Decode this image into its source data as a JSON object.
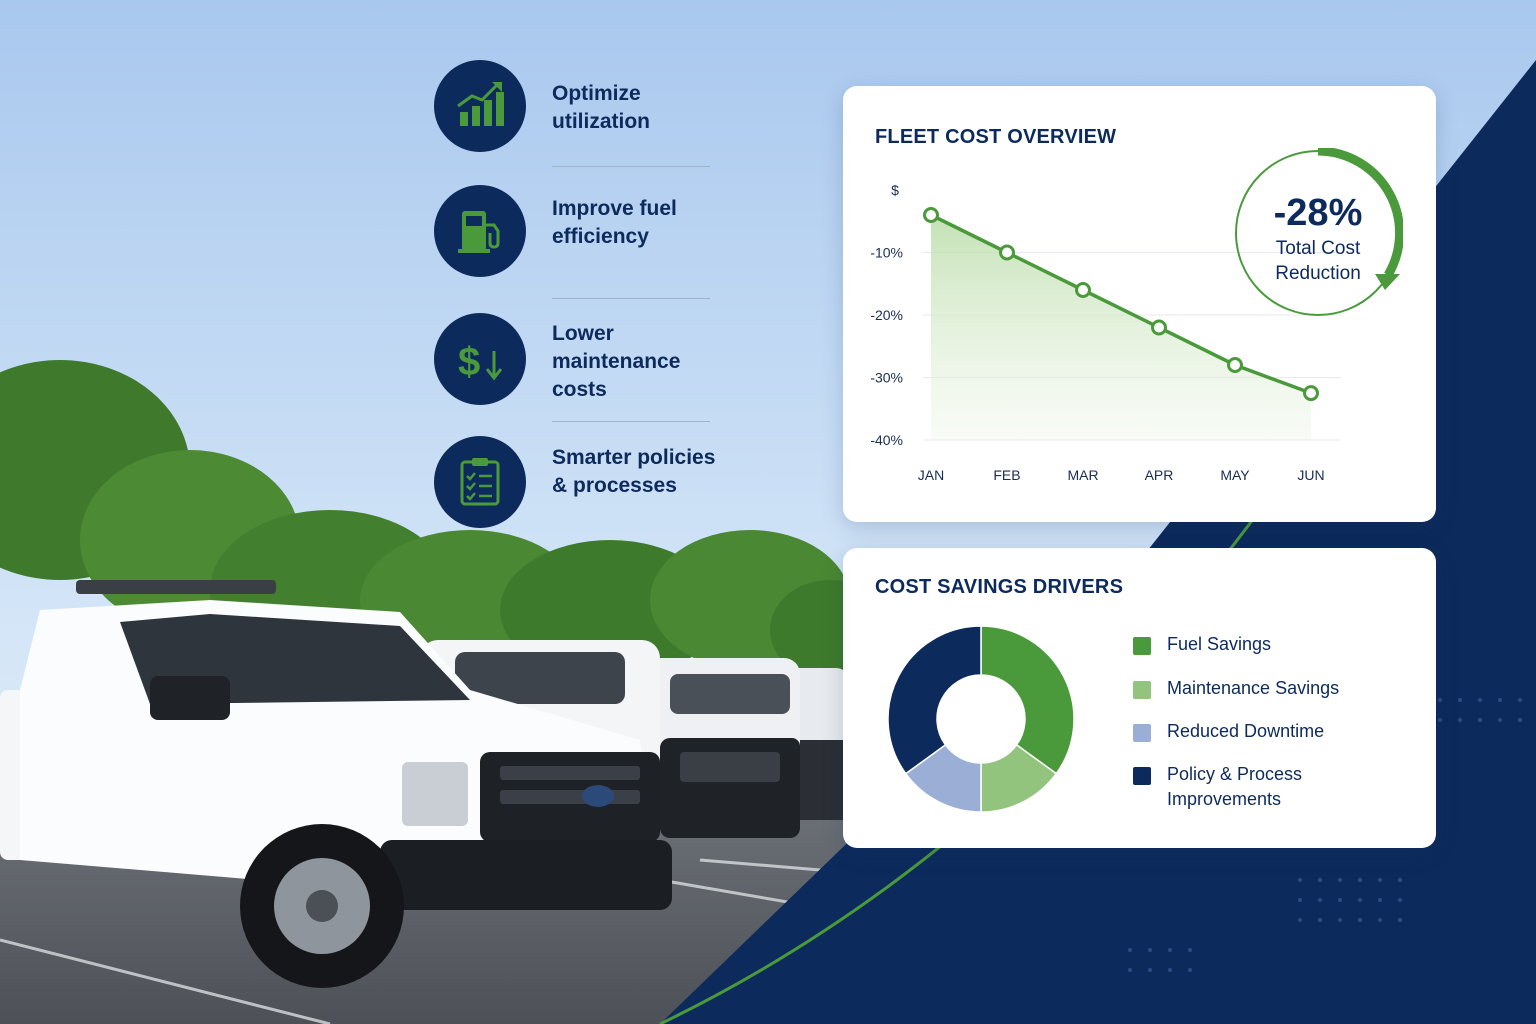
{
  "features": [
    {
      "icon": "bar-chart-up-icon",
      "label": "Optimize utilization"
    },
    {
      "icon": "fuel-pump-icon",
      "label": "Improve fuel efficiency"
    },
    {
      "icon": "dollar-down-icon",
      "label": "Lower maintenance costs"
    },
    {
      "icon": "clipboard-check-icon",
      "label": "Smarter policies & processes"
    }
  ],
  "badge": {
    "value": "-28%",
    "caption": "Total Cost Reduction"
  },
  "colors": {
    "navy": "#0d2a5c",
    "green": "#4a9a3c",
    "light_green": "#93c47d",
    "periwinkle": "#9aaed6"
  },
  "chart_data": [
    {
      "type": "line",
      "title": "FLEET COST OVERVIEW",
      "y_unit_label": "$",
      "categories": [
        "JAN",
        "FEB",
        "MAR",
        "APR",
        "MAY",
        "JUN"
      ],
      "series": [
        {
          "values": [
            -4,
            -10,
            -16,
            -22,
            -28,
            -32.5
          ]
        }
      ],
      "yticks": [
        -10,
        -20,
        -30,
        -40
      ],
      "ytick_labels": [
        "-10%",
        "-20%",
        "-30%",
        "-40%"
      ],
      "ylim": [
        0,
        -40
      ],
      "area_fill": true,
      "legend": "none"
    },
    {
      "type": "pie",
      "donut": true,
      "title": "COST SAVINGS DRIVERS",
      "labels": [
        "Fuel Savings",
        "Maintenance Savings",
        "Reduced Downtime",
        "Policy & Process Improvements"
      ],
      "values": [
        35,
        15,
        15,
        35
      ],
      "colors": [
        "#4a9a3c",
        "#93c47d",
        "#9aaed6",
        "#0d2a5c"
      ],
      "legend": "right"
    }
  ]
}
